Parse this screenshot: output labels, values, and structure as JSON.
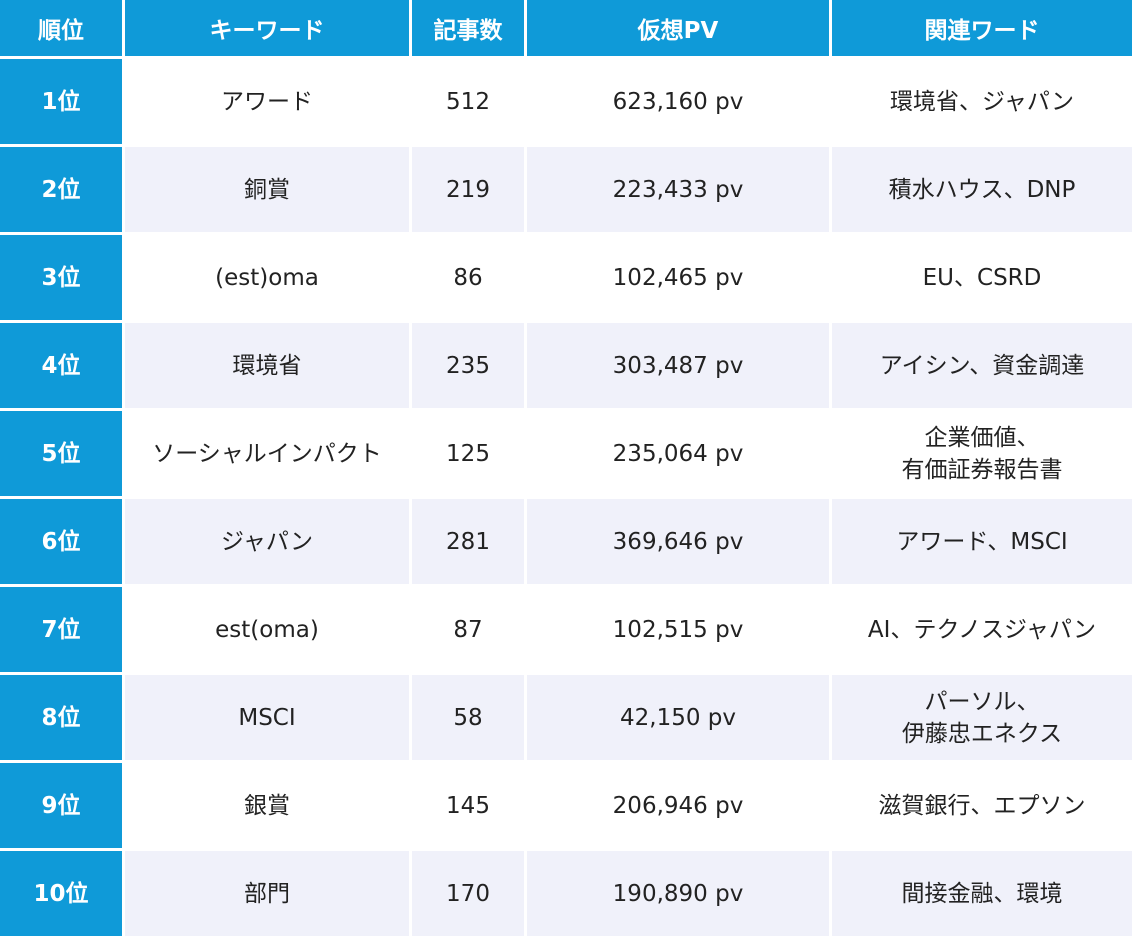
{
  "headers": [
    "順位",
    "キーワード",
    "記事数",
    "仮想PV",
    "関連ワード"
  ],
  "rows": [
    {
      "rank": "1位",
      "keyword": "アワード",
      "articles": "512",
      "pv": "623,160 pv",
      "related": [
        "環境省、ジャパン"
      ]
    },
    {
      "rank": "2位",
      "keyword": "銅賞",
      "articles": "219",
      "pv": "223,433 pv",
      "related": [
        "積水ハウス、DNP"
      ]
    },
    {
      "rank": "3位",
      "keyword": "(est)oma",
      "articles": "86",
      "pv": "102,465 pv",
      "related": [
        "EU、CSRD"
      ]
    },
    {
      "rank": "4位",
      "keyword": "環境省",
      "articles": "235",
      "pv": "303,487 pv",
      "related": [
        "アイシン、資金調達"
      ]
    },
    {
      "rank": "5位",
      "keyword": "ソーシャルインパクト",
      "articles": "125",
      "pv": "235,064 pv",
      "related": [
        "企業価値、",
        "有価証券報告書"
      ]
    },
    {
      "rank": "6位",
      "keyword": "ジャパン",
      "articles": "281",
      "pv": "369,646 pv",
      "related": [
        "アワード、MSCI"
      ]
    },
    {
      "rank": "7位",
      "keyword": "est(oma)",
      "articles": "87",
      "pv": "102,515 pv",
      "related": [
        "AI、テクノスジャパン"
      ]
    },
    {
      "rank": "8位",
      "keyword": "MSCI",
      "articles": "58",
      "pv": "42,150 pv",
      "related": [
        "パーソル、",
        "伊藤忠エネクス"
      ]
    },
    {
      "rank": "9位",
      "keyword": "銀賞",
      "articles": "145",
      "pv": "206,946 pv",
      "related": [
        "滋賀銀行、エプソン"
      ]
    },
    {
      "rank": "10位",
      "keyword": "部門",
      "articles": "170",
      "pv": "190,890 pv",
      "related": [
        "間接金融、環境"
      ]
    }
  ],
  "colors": {
    "header_bg": "#0f9ad8",
    "header_text": "#ffffff",
    "row_alt_bg": "#f0f1fa",
    "row_bg": "#ffffff",
    "text": "#222222"
  }
}
